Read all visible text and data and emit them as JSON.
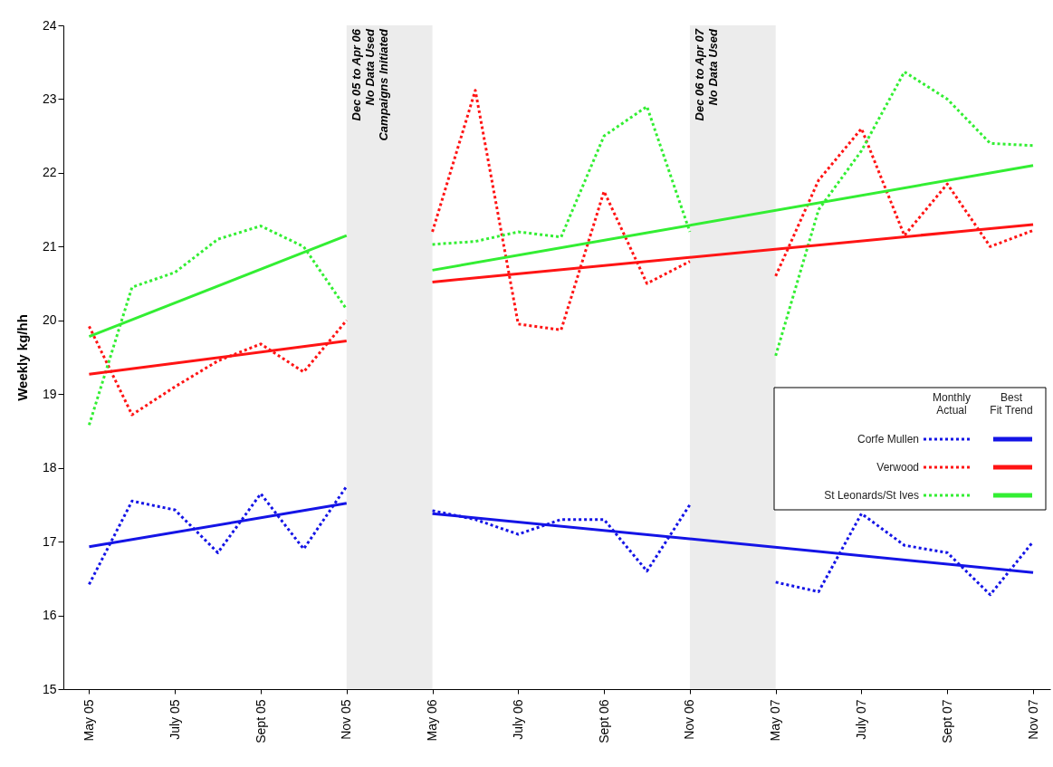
{
  "chart_data": {
    "type": "line",
    "ylabel": "Weekly kg/hh",
    "categories": [
      "May 05",
      null,
      "July 05",
      null,
      "Sept 05",
      null,
      "Nov 05",
      null,
      "May 06",
      null,
      "July 06",
      null,
      "Sept 06",
      null,
      "Nov 06",
      null,
      "May 07",
      null,
      "July 07",
      null,
      "Sept 07",
      null,
      "Nov 07"
    ],
    "ylim": [
      15,
      24
    ],
    "yticks": [
      15,
      16,
      17,
      18,
      19,
      20,
      21,
      22,
      23,
      24
    ],
    "grid": false,
    "legend": "right",
    "marker": "none",
    "series": [
      {
        "name": "Corfe Mullen",
        "color": "#1414e6",
        "line_style": "dotted",
        "values": [
          16.42,
          17.55,
          17.43,
          16.85,
          17.65,
          16.9,
          17.75,
          null,
          17.42,
          17.3,
          17.1,
          17.3,
          17.3,
          16.6,
          17.5,
          null,
          16.45,
          16.32,
          17.38,
          16.95,
          16.85,
          16.28,
          17.0
        ]
      },
      {
        "name": "Verwood",
        "color": "#ff1414",
        "line_style": "dotted",
        "values": [
          19.92,
          18.72,
          19.1,
          19.45,
          19.68,
          19.3,
          20.0,
          null,
          21.2,
          23.12,
          19.95,
          19.87,
          21.75,
          20.5,
          20.8,
          null,
          20.6,
          21.9,
          22.6,
          21.15,
          21.85,
          21.0,
          21.22
        ]
      },
      {
        "name": "St Leonards/St Ives",
        "color": "#33ee33",
        "line_style": "dotted",
        "values": [
          18.58,
          20.45,
          20.65,
          21.1,
          21.28,
          21.0,
          20.15,
          null,
          21.03,
          21.07,
          21.2,
          21.13,
          22.5,
          22.9,
          21.2,
          null,
          19.52,
          21.5,
          22.3,
          23.37,
          23.0,
          22.4,
          22.37
        ]
      },
      {
        "color": "#1414e6",
        "line_style": "solid",
        "x": [
          "May 05",
          "Nov 05"
        ],
        "values": [
          16.93,
          17.52
        ]
      },
      {
        "color": "#1414e6",
        "line_style": "solid",
        "x": [
          "May 06",
          "Nov 07"
        ],
        "values": [
          17.38,
          16.58
        ]
      },
      {
        "color": "#ff1414",
        "line_style": "solid",
        "x": [
          "May 05",
          "Nov 05"
        ],
        "values": [
          19.27,
          19.72
        ]
      },
      {
        "color": "#ff1414",
        "line_style": "solid",
        "x": [
          "May 06",
          "Nov 07"
        ],
        "values": [
          20.52,
          21.3
        ]
      },
      {
        "color": "#33ee33",
        "line_style": "solid",
        "x": [
          "May 05",
          "Nov 05"
        ],
        "values": [
          19.78,
          21.15
        ]
      },
      {
        "color": "#33ee33",
        "line_style": "solid",
        "x": [
          "May 06",
          "Nov 07"
        ],
        "values": [
          20.68,
          22.1
        ]
      }
    ],
    "bands": [
      {
        "axis": "x",
        "from": "Nov 05",
        "to": "May 06",
        "label": "Dec 05 to Apr 06\nNo Data Used\nCampaigns Initiated",
        "color": "#ececec"
      },
      {
        "axis": "x",
        "from": "Nov 06",
        "to": "May 07",
        "label": "Dec 06 to Apr 07\nNo Data Used",
        "color": "#ececec"
      }
    ],
    "annotations": [
      "Monthly Actual",
      "Best Fit Trend"
    ]
  }
}
